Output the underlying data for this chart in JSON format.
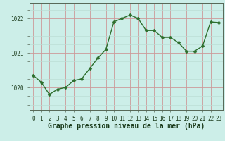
{
  "x": [
    0,
    1,
    2,
    3,
    4,
    5,
    6,
    7,
    8,
    9,
    10,
    11,
    12,
    13,
    14,
    15,
    16,
    17,
    18,
    19,
    20,
    21,
    22,
    23
  ],
  "y": [
    1020.35,
    1020.15,
    1019.8,
    1019.95,
    1020.0,
    1020.2,
    1020.25,
    1020.55,
    1020.85,
    1021.1,
    1021.9,
    1022.0,
    1022.1,
    1022.0,
    1021.65,
    1021.65,
    1021.45,
    1021.45,
    1021.3,
    1021.05,
    1021.05,
    1021.2,
    1021.9,
    1021.88
  ],
  "line_color": "#2d6e2d",
  "marker": "D",
  "marker_size": 2.5,
  "linewidth": 1.0,
  "bg_color": "#cceee8",
  "grid_major_color": "#99ccbb",
  "grid_minor_color": "#bbddd5",
  "xlabel": "Graphe pression niveau de la mer (hPa)",
  "xlabel_fontsize": 7,
  "xlabel_color": "#1a3a1a",
  "ytick_labels": [
    "1020",
    "1021",
    "1022"
  ],
  "ytick_values": [
    1020,
    1021,
    1022
  ],
  "ylim": [
    1019.35,
    1022.45
  ],
  "xlim": [
    -0.5,
    23.5
  ],
  "xtick_labels": [
    "0",
    "1",
    "2",
    "3",
    "4",
    "5",
    "6",
    "7",
    "8",
    "9",
    "10",
    "11",
    "12",
    "13",
    "14",
    "15",
    "16",
    "17",
    "18",
    "19",
    "20",
    "21",
    "22",
    "23"
  ],
  "tick_fontsize": 5.5,
  "spine_color": "#556655"
}
